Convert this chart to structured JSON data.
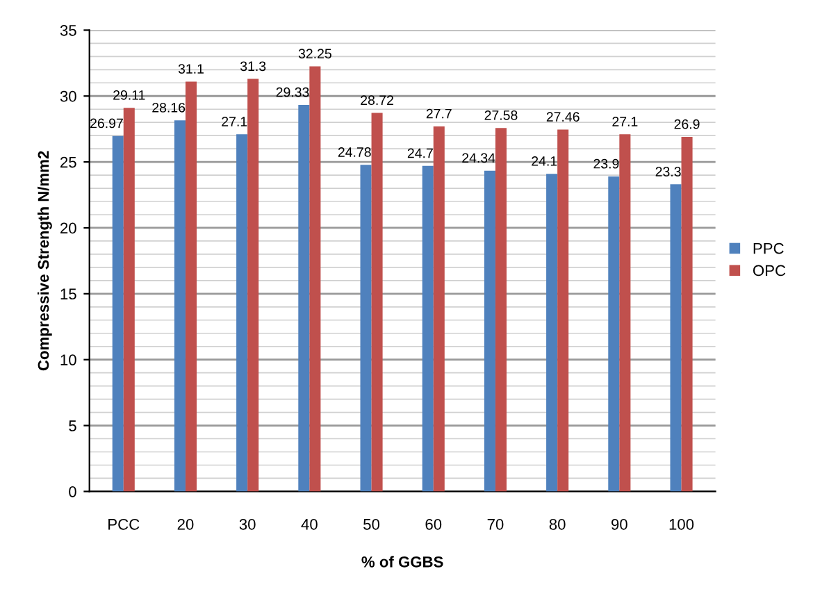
{
  "chart_data": {
    "type": "bar",
    "xlabel": "% of GGBS",
    "ylabel": "Compressive Strength N/mm2",
    "categories": [
      "PCC",
      "20",
      "30",
      "40",
      "50",
      "60",
      "70",
      "80",
      "90",
      "100"
    ],
    "series": [
      {
        "name": "PPC",
        "color": "#4f81bd",
        "values": [
          26.97,
          28.16,
          27.1,
          29.33,
          24.78,
          24.7,
          24.34,
          24.1,
          23.9,
          23.3
        ]
      },
      {
        "name": "OPC",
        "color": "#c0504d",
        "values": [
          29.11,
          31.1,
          31.3,
          32.25,
          28.72,
          27.7,
          27.58,
          27.46,
          27.1,
          26.9
        ]
      }
    ],
    "ylim": [
      0,
      35
    ],
    "yticks": [
      0,
      5,
      10,
      15,
      20,
      25,
      30,
      35
    ],
    "grid": "y",
    "legend": "right",
    "data_labels": true
  }
}
